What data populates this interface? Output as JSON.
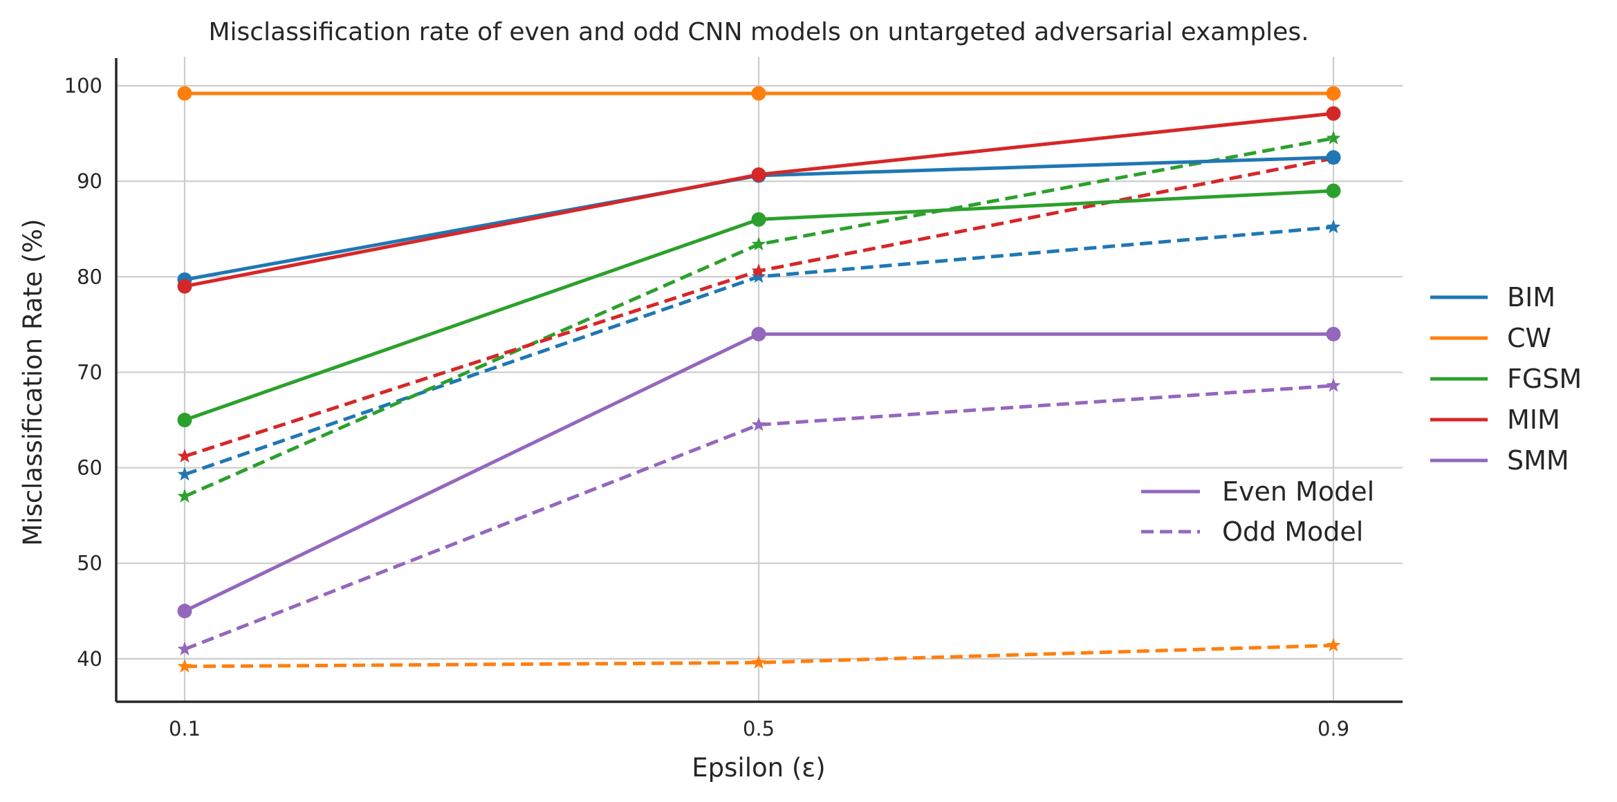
{
  "chart_data": {
    "type": "line",
    "title": "Misclassification rate of even and odd CNN models on untargeted adversarial examples.",
    "xlabel": "Epsilon (ε)",
    "ylabel": "Misclassification Rate (%)",
    "x": [
      0.1,
      0.5,
      0.9
    ],
    "x_tick_labels": [
      "0.1",
      "0.5",
      "0.9"
    ],
    "ylim": [
      35.5,
      102.9
    ],
    "y_ticks": [
      40,
      50,
      60,
      70,
      80,
      90,
      100
    ],
    "y_tick_labels": [
      "40",
      "50",
      "60",
      "70",
      "80",
      "90",
      "100"
    ],
    "grid": true,
    "series": [
      {
        "name": "BIM",
        "model": "Even Model",
        "color": "#1f77b4",
        "values": [
          79.7,
          90.6,
          92.5
        ]
      },
      {
        "name": "CW",
        "model": "Even Model",
        "color": "#ff7f0e",
        "values": [
          99.2,
          99.2,
          99.2
        ]
      },
      {
        "name": "FGSM",
        "model": "Even Model",
        "color": "#2ca02c",
        "values": [
          65.0,
          86.0,
          89.0
        ]
      },
      {
        "name": "MIM",
        "model": "Even Model",
        "color": "#d62728",
        "values": [
          79.0,
          90.7,
          97.1
        ]
      },
      {
        "name": "SMM",
        "model": "Even Model",
        "color": "#9467bd",
        "values": [
          45.0,
          74.0,
          74.0
        ]
      },
      {
        "name": "BIM",
        "model": "Odd Model",
        "color": "#1f77b4",
        "values": [
          59.3,
          80.0,
          85.2
        ]
      },
      {
        "name": "CW",
        "model": "Odd Model",
        "color": "#ff7f0e",
        "values": [
          39.2,
          39.6,
          41.4
        ]
      },
      {
        "name": "FGSM",
        "model": "Odd Model",
        "color": "#2ca02c",
        "values": [
          57.0,
          83.4,
          94.5
        ]
      },
      {
        "name": "MIM",
        "model": "Odd Model",
        "color": "#d62728",
        "values": [
          61.2,
          80.6,
          92.4
        ]
      },
      {
        "name": "SMM",
        "model": "Odd Model",
        "color": "#9467bd",
        "values": [
          41.0,
          64.5,
          68.6
        ]
      }
    ],
    "legend_attacks": [
      {
        "label": "BIM",
        "color": "#1f77b4"
      },
      {
        "label": "CW",
        "color": "#ff7f0e"
      },
      {
        "label": "FGSM",
        "color": "#2ca02c"
      },
      {
        "label": "MIM",
        "color": "#d62728"
      },
      {
        "label": "SMM",
        "color": "#9467bd"
      }
    ],
    "legend_attacks_placement": "outside right",
    "legend_models": [
      {
        "label": "Even Model",
        "style": "solid",
        "color": "#9467bd"
      },
      {
        "label": "Odd Model",
        "style": "dashed",
        "color": "#9467bd"
      }
    ],
    "legend_models_placement": "lower right"
  }
}
